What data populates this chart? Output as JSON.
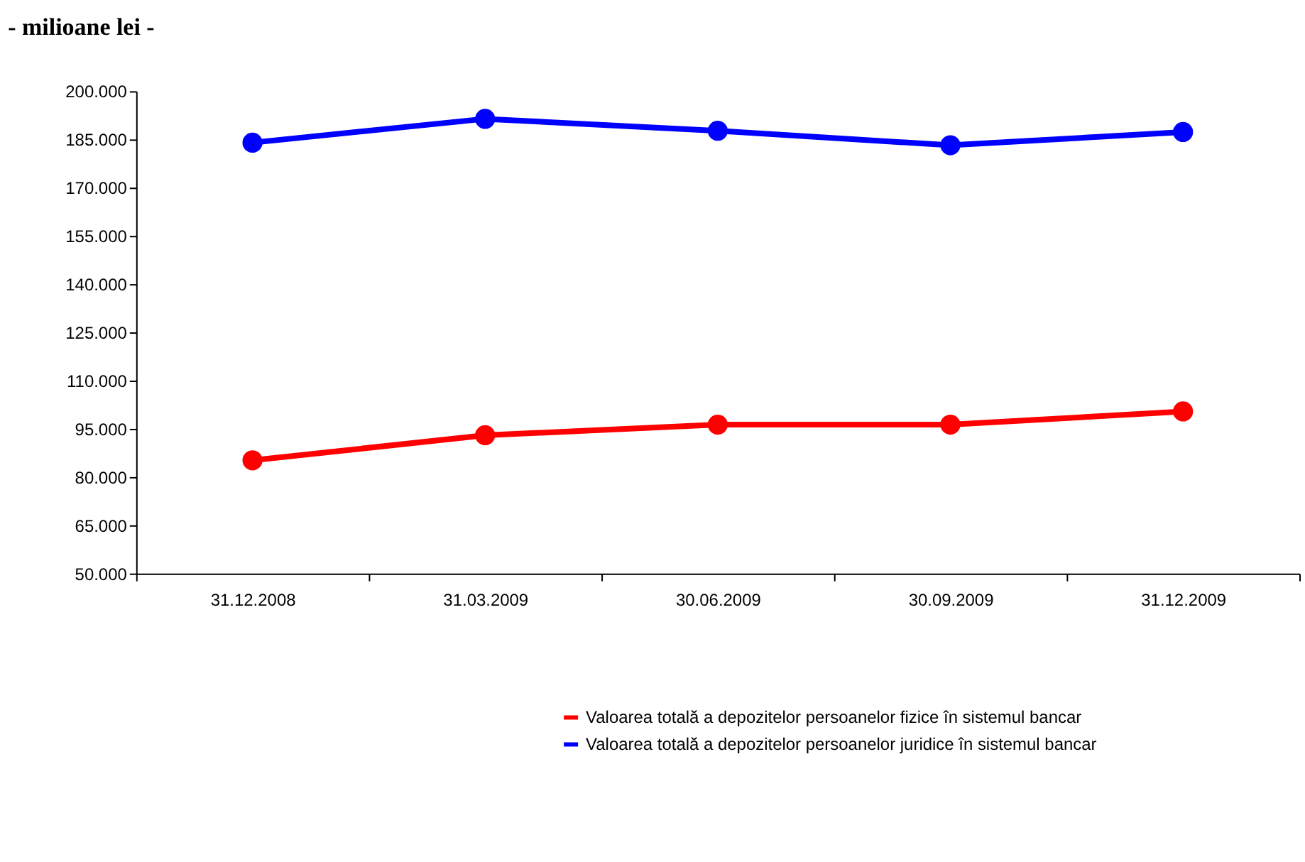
{
  "chart_data": {
    "type": "line",
    "title": "-  milioane lei -",
    "categories": [
      "31.12.2008",
      "31.03.2009",
      "30.06.2009",
      "30.09.2009",
      "31.12.2009"
    ],
    "series": [
      {
        "name": "Valoarea totală a depozitelor persoanelor fizice  în sistemul bancar",
        "color": "#ff0000",
        "values": [
          85200,
          93000,
          96300,
          96300,
          100400
        ]
      },
      {
        "name": "Valoarea totală a depozitelor persoanelor juridice  în sistemul bancar",
        "color": "#0000ff",
        "values": [
          184000,
          191400,
          187700,
          183200,
          187300
        ]
      }
    ],
    "ylim": [
      50000,
      200000
    ],
    "yticks": [
      {
        "value": 50000,
        "label": "50.000"
      },
      {
        "value": 65000,
        "label": "65.000"
      },
      {
        "value": 80000,
        "label": "80.000"
      },
      {
        "value": 95000,
        "label": "95.000"
      },
      {
        "value": 110000,
        "label": "110.000"
      },
      {
        "value": 125000,
        "label": "125.000"
      },
      {
        "value": 140000,
        "label": "140.000"
      },
      {
        "value": 155000,
        "label": "155.000"
      },
      {
        "value": 170000,
        "label": "170.000"
      },
      {
        "value": 185000,
        "label": "185.000"
      },
      {
        "value": 200000,
        "label": "200.000"
      }
    ],
    "grid": false,
    "legend": "bottom right",
    "marker": "circle",
    "line_style": "solid"
  }
}
